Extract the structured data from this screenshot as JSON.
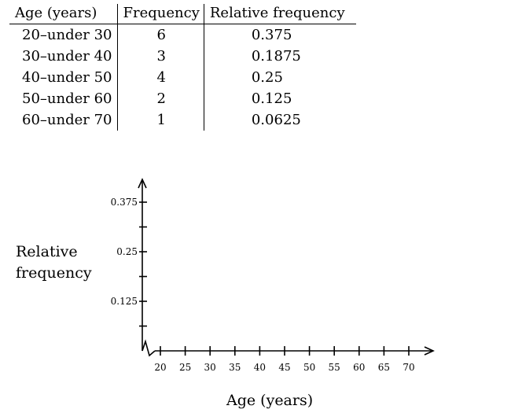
{
  "table": {
    "headers": [
      "Age (years)",
      "Frequency",
      "Relative frequency"
    ],
    "rows": [
      [
        "20–under 30",
        "6",
        "0.375"
      ],
      [
        "30–under 40",
        "3",
        "0.1875"
      ],
      [
        "40–under 50",
        "4",
        "0.25"
      ],
      [
        "50–under 60",
        "2",
        "0.125"
      ],
      [
        "60–under 70",
        "1",
        "0.0625"
      ]
    ]
  },
  "chart_data": {
    "type": "bar",
    "xlabel": "Age (years)",
    "ylabel_lines": [
      "Relative",
      "frequency"
    ],
    "x_ticks": [
      20,
      25,
      30,
      35,
      40,
      45,
      50,
      55,
      60,
      65,
      70
    ],
    "y_tick_labels": [
      "0.125",
      "0.25",
      "0.375"
    ],
    "y_tick_values": [
      0.0625,
      0.125,
      0.1875,
      0.25,
      0.3125,
      0.375
    ],
    "ylim": [
      0,
      0.4375
    ],
    "xlim": [
      20,
      72
    ],
    "axis_break": true,
    "categories": [],
    "values": []
  }
}
